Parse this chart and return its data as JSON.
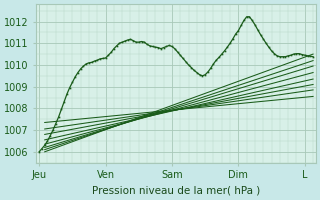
{
  "bg_color": "#c8e8e8",
  "plot_bg_color": "#d8f0e8",
  "grid_color_major": "#a8c8b8",
  "grid_color_minor": "#b8d8c8",
  "line_color_dark": "#1a5c1a",
  "xlabel": "Pression niveau de la mer( hPa )",
  "xlabel_color": "#1a4a1a",
  "tick_labels_x": [
    "Jeu",
    "Ven",
    "Sam",
    "Dim",
    "L"
  ],
  "tick_positions_x": [
    0,
    24,
    48,
    72,
    96
  ],
  "ylim": [
    1005.5,
    1012.8
  ],
  "xlim": [
    -1,
    100
  ],
  "yticks": [
    1006,
    1007,
    1008,
    1009,
    1010,
    1011,
    1012
  ],
  "ensemble_starts": [
    1006.0,
    1006.1,
    1006.2,
    1006.35,
    1006.55,
    1006.8,
    1007.05,
    1007.35
  ],
  "ensemble_ends": [
    1010.5,
    1010.2,
    1009.95,
    1009.65,
    1009.35,
    1009.1,
    1008.85,
    1008.55
  ],
  "main_curve_x": [
    0,
    1,
    2,
    3,
    4,
    5,
    6,
    7,
    8,
    9,
    10,
    11,
    12,
    13,
    14,
    15,
    16,
    17,
    18,
    19,
    20,
    21,
    22,
    23,
    24,
    25,
    26,
    27,
    28,
    29,
    30,
    31,
    32,
    33,
    34,
    35,
    36,
    37,
    38,
    39,
    40,
    41,
    42,
    43,
    44,
    45,
    46,
    47,
    48,
    49,
    50,
    51,
    52,
    53,
    54,
    55,
    56,
    57,
    58,
    59,
    60,
    61,
    62,
    63,
    64,
    65,
    66,
    67,
    68,
    69,
    70,
    71,
    72,
    73,
    74,
    75,
    76,
    77,
    78,
    79,
    80,
    81,
    82,
    83,
    84,
    85,
    86,
    87,
    88,
    89,
    90,
    91,
    92,
    93,
    94,
    95,
    96,
    97,
    98,
    99
  ],
  "main_curve_y": [
    1006.0,
    1006.15,
    1006.3,
    1006.5,
    1006.75,
    1007.0,
    1007.3,
    1007.6,
    1007.95,
    1008.3,
    1008.65,
    1008.95,
    1009.2,
    1009.45,
    1009.65,
    1009.82,
    1009.95,
    1010.05,
    1010.1,
    1010.12,
    1010.18,
    1010.22,
    1010.28,
    1010.3,
    1010.32,
    1010.45,
    1010.58,
    1010.75,
    1010.88,
    1011.0,
    1011.05,
    1011.1,
    1011.15,
    1011.18,
    1011.12,
    1011.05,
    1011.05,
    1011.08,
    1011.05,
    1010.95,
    1010.88,
    1010.85,
    1010.82,
    1010.8,
    1010.75,
    1010.8,
    1010.85,
    1010.9,
    1010.85,
    1010.75,
    1010.6,
    1010.45,
    1010.3,
    1010.15,
    1010.0,
    1009.88,
    1009.75,
    1009.65,
    1009.55,
    1009.5,
    1009.55,
    1009.68,
    1009.85,
    1010.05,
    1010.22,
    1010.35,
    1010.5,
    1010.65,
    1010.82,
    1011.0,
    1011.2,
    1011.42,
    1011.58,
    1011.82,
    1012.05,
    1012.22,
    1012.22,
    1012.05,
    1011.85,
    1011.62,
    1011.4,
    1011.2,
    1011.0,
    1010.82,
    1010.65,
    1010.52,
    1010.42,
    1010.38,
    1010.38,
    1010.38,
    1010.42,
    1010.45,
    1010.5,
    1010.52,
    1010.52,
    1010.48,
    1010.45,
    1010.42,
    1010.4,
    1010.38
  ]
}
